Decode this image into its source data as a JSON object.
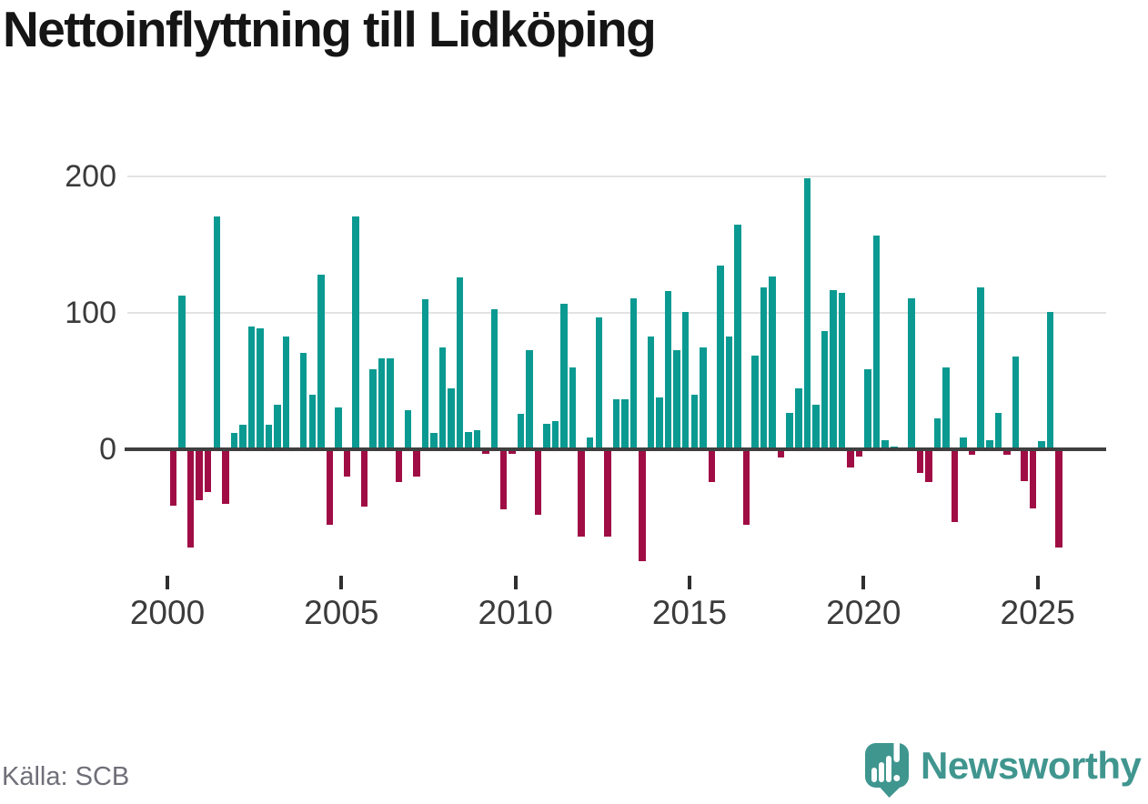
{
  "title": "Nettoinflyttning till Lidköping",
  "source": {
    "label": "Källa: SCB"
  },
  "branding": {
    "wordmark": "Newsworthy",
    "logo_icon": "newsworthy-speech-bubble-chart-icon"
  },
  "colors": {
    "positive": "#0b9a92",
    "negative": "#a00d45",
    "grid": "#e3e3e3",
    "zero_line": "#3f3f3f",
    "axis_text": "#3b3b3b",
    "title_text": "#151515",
    "source_text": "#6f6f79",
    "brand_teal": "#40968f"
  },
  "chart_data": {
    "type": "bar",
    "title": "Nettoinflyttning till Lidköping",
    "x_period": "quarterly",
    "start": "2000-Q1",
    "end": "2025-Q3",
    "values": [
      -41,
      113,
      -72,
      -37,
      -31,
      171,
      -40,
      12,
      18,
      90,
      89,
      18,
      33,
      83,
      0,
      71,
      40,
      128,
      -55,
      31,
      -20,
      171,
      -42,
      59,
      67,
      67,
      -24,
      29,
      -20,
      110,
      12,
      75,
      45,
      126,
      13,
      14,
      -3,
      103,
      -44,
      -3,
      26,
      73,
      -48,
      19,
      21,
      107,
      60,
      -64,
      9,
      97,
      -64,
      37,
      37,
      111,
      -82,
      83,
      38,
      116,
      73,
      101,
      40,
      75,
      -24,
      135,
      83,
      165,
      -55,
      69,
      119,
      127,
      -6,
      27,
      45,
      199,
      33,
      87,
      117,
      115,
      -13,
      -5,
      59,
      157,
      7,
      2,
      0,
      111,
      -17,
      -24,
      23,
      60,
      -53,
      9,
      -4,
      119,
      7,
      27,
      -4,
      68,
      -23,
      -43,
      6,
      101,
      -72
    ],
    "x_tick_labels": [
      "2000",
      "2005",
      "2010",
      "2015",
      "2020",
      "2025"
    ],
    "y_ticks": [
      {
        "label": "0",
        "value": 0
      },
      {
        "label": "100",
        "value": 100
      },
      {
        "label": "200",
        "value": 200
      }
    ],
    "xlabel": "",
    "ylabel": "",
    "ylim": [
      -97,
      216
    ],
    "grid": "horizontal-only",
    "legend": "none"
  }
}
